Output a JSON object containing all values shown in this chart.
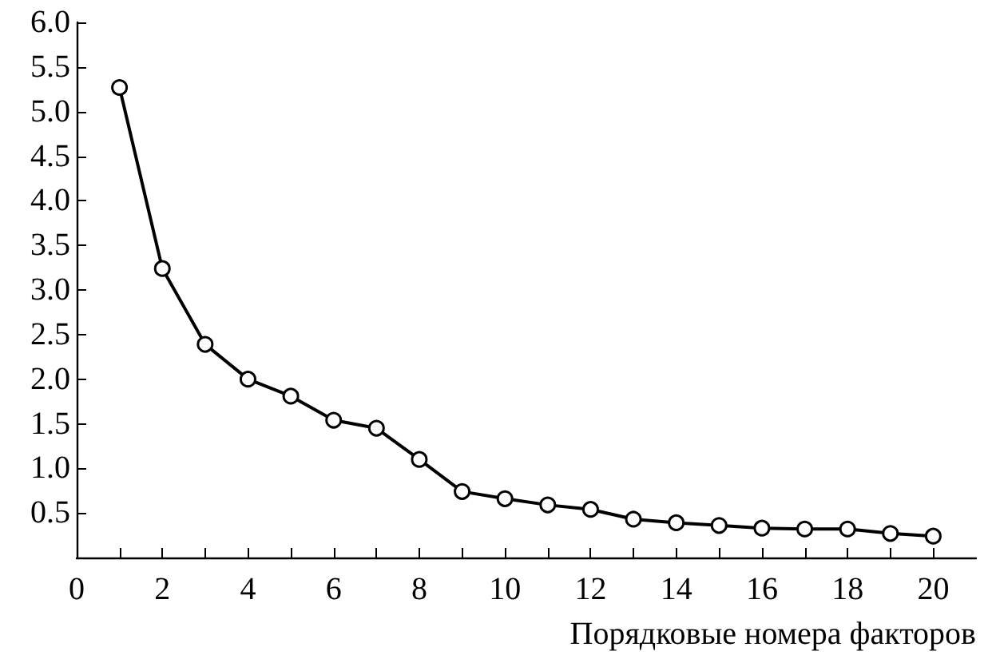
{
  "chart_data": {
    "type": "line",
    "xlabel": "Порядковые номера факторов",
    "x": [
      1,
      2,
      3,
      4,
      5,
      6,
      7,
      8,
      9,
      10,
      11,
      12,
      13,
      14,
      15,
      16,
      17,
      18,
      19,
      20
    ],
    "series": [
      {
        "color": "#000000",
        "values": [
          5.27,
          3.24,
          2.39,
          2.0,
          1.81,
          1.54,
          1.45,
          1.1,
          0.74,
          0.66,
          0.59,
          0.54,
          0.43,
          0.39,
          0.36,
          0.33,
          0.32,
          0.32,
          0.27,
          0.24
        ]
      }
    ],
    "xlim": [
      0,
      21
    ],
    "xticks": [
      0,
      {
        "value": 1,
        "label": null
      },
      2,
      {
        "value": 3,
        "label": null
      },
      4,
      {
        "value": 5,
        "label": null
      },
      6,
      {
        "value": 7,
        "label": null
      },
      8,
      {
        "value": 9,
        "label": null
      },
      10,
      {
        "value": 11,
        "label": null
      },
      12,
      {
        "value": 13,
        "label": null
      },
      14,
      {
        "value": 15,
        "label": null
      },
      16,
      {
        "value": 17,
        "label": null
      },
      18,
      {
        "value": 19,
        "label": null
      },
      20
    ],
    "ylim": [
      0,
      6
    ],
    "yticks": [
      {
        "value": 0.5,
        "label": "0.5"
      },
      {
        "value": 1,
        "label": "1.0"
      },
      {
        "value": 1.5,
        "label": "1.5"
      },
      {
        "value": 2,
        "label": "2.0"
      },
      {
        "value": 2.5,
        "label": "2.5"
      },
      {
        "value": 3,
        "label": "3.0"
      },
      {
        "value": 3.5,
        "label": "3.5"
      },
      {
        "value": 4,
        "label": "4.0"
      },
      {
        "value": 4.5,
        "label": "4.5"
      },
      {
        "value": 5,
        "label": "5.0"
      },
      {
        "value": 5.5,
        "label": "5.5"
      },
      {
        "value": 6,
        "label": "6.0"
      }
    ],
    "marker": "circle",
    "line_style": "solid"
  }
}
